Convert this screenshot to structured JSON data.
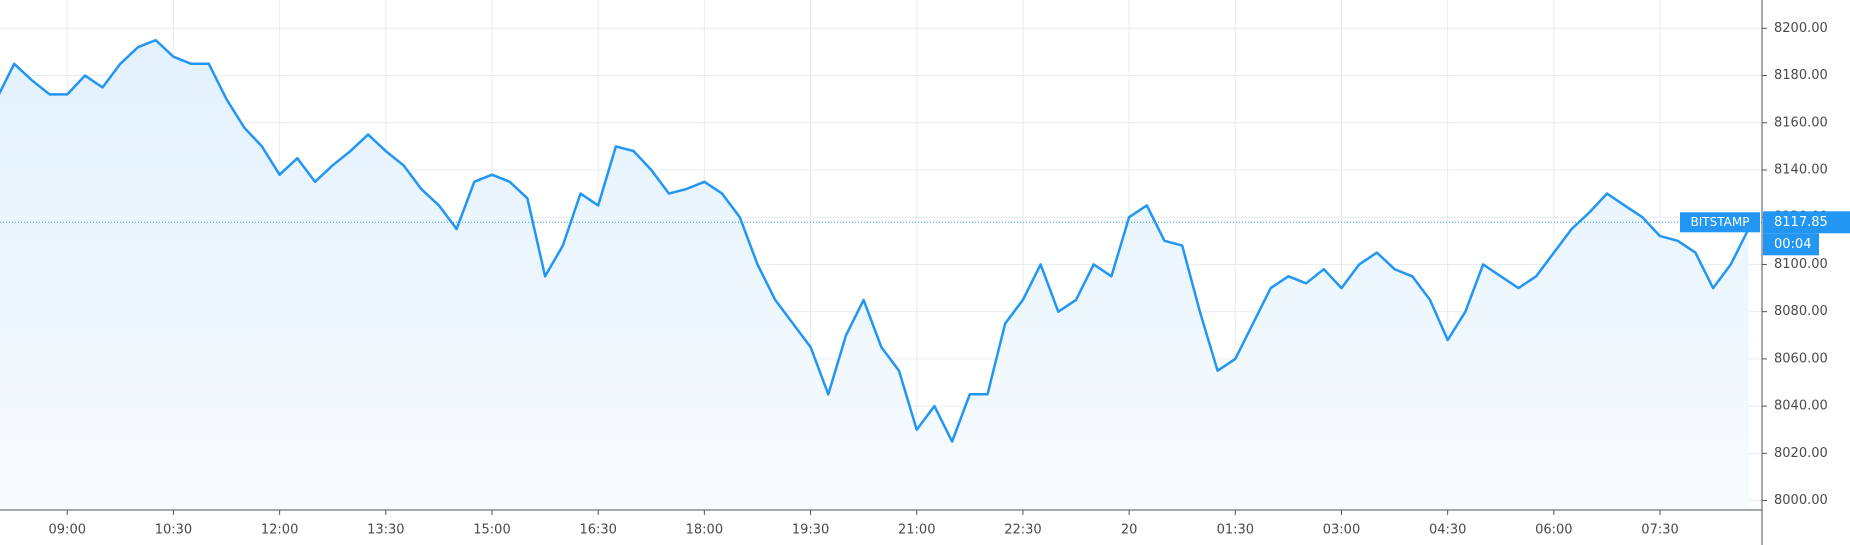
{
  "chart_data": {
    "type": "area",
    "categories": [
      null,
      null,
      null,
      null,
      "09:00",
      null,
      null,
      null,
      null,
      null,
      "10:30",
      null,
      null,
      null,
      null,
      null,
      "12:00",
      null,
      null,
      null,
      null,
      null,
      "13:30",
      null,
      null,
      null,
      null,
      null,
      "15:00",
      null,
      null,
      null,
      null,
      null,
      "16:30",
      null,
      null,
      null,
      null,
      null,
      "18:00",
      null,
      null,
      null,
      null,
      null,
      "19:30",
      null,
      null,
      null,
      null,
      null,
      "21:00",
      null,
      null,
      null,
      null,
      null,
      "22:30",
      null,
      null,
      null,
      null,
      null,
      "20",
      null,
      null,
      null,
      null,
      null,
      "01:30",
      null,
      null,
      null,
      null,
      null,
      "03:00",
      null,
      null,
      null,
      null,
      null,
      "04:30",
      null,
      null,
      null,
      null,
      null,
      "06:00",
      null,
      null,
      null,
      null,
      null,
      "07:30",
      null,
      null,
      null,
      null,
      null
    ],
    "series": [
      {
        "color": "#2196f3",
        "values": [
          8170,
          8185,
          8178,
          8172,
          8172,
          8180,
          8175,
          8185,
          8192,
          8195,
          8188,
          8185,
          8185,
          8170,
          8158,
          8150,
          8138,
          8145,
          8135,
          8142,
          8148,
          8155,
          8148,
          8142,
          8132,
          8125,
          8115,
          8135,
          8138,
          8135,
          8128,
          8095,
          8108,
          8130,
          8125,
          8150,
          8148,
          8140,
          8130,
          8132,
          8135,
          8130,
          8120,
          8100,
          8085,
          8075,
          8065,
          8045,
          8070,
          8085,
          8065,
          8055,
          8030,
          8040,
          8025,
          8045,
          8045,
          8075,
          8085,
          8100,
          8080,
          8085,
          8100,
          8095,
          8120,
          8125,
          8110,
          8108,
          8080,
          8055,
          8060,
          8075,
          8090,
          8095,
          8092,
          8098,
          8090,
          8100,
          8105,
          8098,
          8095,
          8085,
          8068,
          8080,
          8100,
          8095,
          8090,
          8095,
          8105,
          8115,
          8122,
          8130,
          8125,
          8120,
          8112,
          8110,
          8105,
          8090,
          8100,
          8115
        ]
      }
    ],
    "ylim": [
      7996,
      8212
    ],
    "yticks": [
      {
        "value": 8000,
        "label": "8000.00"
      },
      {
        "value": 8020,
        "label": "8020.00"
      },
      {
        "value": 8040,
        "label": "8040.00"
      },
      {
        "value": 8060,
        "label": "8060.00"
      },
      {
        "value": 8080,
        "label": "8080.00"
      },
      {
        "value": 8100,
        "label": "8100.00"
      },
      {
        "value": 8120,
        "label": "8120.00"
      },
      {
        "value": 8140,
        "label": "8140.00"
      },
      {
        "value": 8160,
        "label": "8160.00"
      },
      {
        "value": 8180,
        "label": "8180.00"
      },
      {
        "value": 8200,
        "label": "8200.00"
      }
    ],
    "grid": true,
    "exchange": "BITSTAMP",
    "last_price": 8117.85,
    "countdown": "00:04"
  }
}
